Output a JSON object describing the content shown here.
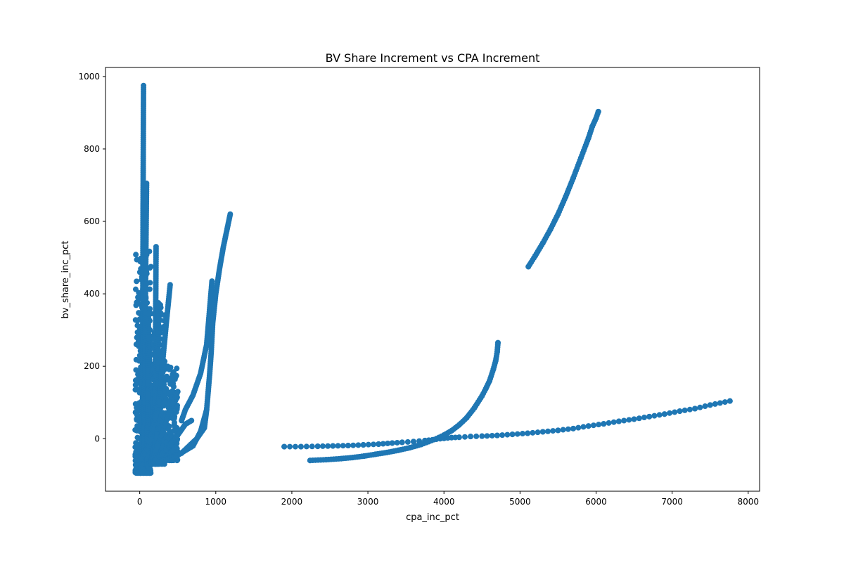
{
  "chart_data": {
    "type": "scatter",
    "title": "BV Share Increment vs CPA Increment",
    "xlabel": "cpa_inc_pct",
    "ylabel": "bv_share_inc_pct",
    "xlim": [
      -450,
      8150
    ],
    "ylim": [
      -145,
      1025
    ],
    "xticks": [
      0,
      1000,
      2000,
      3000,
      4000,
      5000,
      6000,
      7000,
      8000
    ],
    "yticks": [
      0,
      200,
      400,
      600,
      800,
      1000
    ],
    "grid": false,
    "legend": "none",
    "marker_color": "#1f77b4",
    "series": [
      {
        "clusters": [
          {
            "x_range": [
              -60,
              150
            ],
            "y_range": [
              -95,
              520
            ]
          },
          {
            "x_range": [
              0,
              330
            ],
            "y_range": [
              -70,
              380
            ]
          },
          {
            "x_range": [
              100,
              500
            ],
            "y_range": [
              -60,
              200
            ]
          }
        ],
        "strands": [
          {
            "x": [
              35,
              40,
              45,
              50
            ],
            "y": [
              -60,
              300,
              700,
              975
            ]
          },
          {
            "x": [
              60,
              70,
              80,
              90
            ],
            "y": [
              -50,
              250,
              500,
              705
            ]
          },
          {
            "x": [
              200,
              205,
              210,
              215
            ],
            "y": [
              -60,
              150,
              350,
              530
            ]
          },
          {
            "x": [
              230,
              235,
              240,
              245
            ],
            "y": [
              -60,
              100,
              250,
              375
            ]
          },
          {
            "x": [
              100,
              105,
              110,
              115
            ],
            "y": [
              -60,
              80,
              220,
              345
            ]
          },
          {
            "x": [
              0,
              120,
              250,
              350,
              400
            ],
            "y": [
              -60,
              -20,
              100,
              320,
              425
            ]
          },
          {
            "x": [
              150,
              200,
              300,
              400,
              500
            ],
            "y": [
              -60,
              -40,
              20,
              80,
              130
            ]
          },
          {
            "x": [
              100,
              200,
              350,
              500,
              600,
              680
            ],
            "y": [
              -70,
              -60,
              -30,
              10,
              40,
              50
            ]
          },
          {
            "x": [
              550,
              600,
              700,
              800,
              880,
              950
            ],
            "y": [
              50,
              80,
              120,
              180,
              260,
              435
            ]
          },
          {
            "x": [
              300,
              500,
              700,
              800,
              880,
              900,
              920,
              940,
              960,
              1000,
              1050,
              1100,
              1150,
              1190
            ],
            "y": [
              -60,
              -45,
              -20,
              20,
              80,
              130,
              180,
              240,
              320,
              400,
              470,
              530,
              580,
              620
            ]
          },
          {
            "x": [
              250,
              400,
              550,
              650,
              750,
              850,
              880
            ],
            "y": [
              -65,
              -55,
              -40,
              -20,
              0,
              30,
              80
            ]
          }
        ]
      },
      {
        "x": [
          1900,
          2120,
          2340,
          2540,
          2740,
          2940,
          3140,
          3320,
          3450,
          3600,
          3750,
          3850,
          3950,
          4000,
          4100,
          4200,
          4350,
          4500,
          4700,
          4900,
          5100,
          5300,
          5500,
          5700,
          5900,
          6100,
          6300,
          6500,
          6700,
          6900,
          7100,
          7300,
          7500,
          7760
        ],
        "y": [
          -22,
          -22,
          -21,
          -20,
          -19,
          -17,
          -15,
          -12,
          -10,
          -8,
          -5,
          -3,
          0,
          1,
          3,
          4,
          6,
          7,
          9,
          12,
          15,
          19,
          23,
          28,
          35,
          41,
          48,
          54,
          61,
          68,
          76,
          83,
          93,
          104
        ]
      },
      {
        "x": [
          2240,
          2450,
          2650,
          2800,
          2950,
          3100,
          3250,
          3400,
          3550,
          3700,
          3800,
          3900,
          4000,
          4100,
          4200,
          4300,
          4400,
          4500,
          4550,
          4600,
          4650,
          4680,
          4700,
          4710
        ],
        "y": [
          -60,
          -58,
          -55,
          -52,
          -48,
          -43,
          -38,
          -32,
          -25,
          -16,
          -8,
          0,
          10,
          22,
          38,
          58,
          85,
          118,
          138,
          160,
          192,
          215,
          240,
          265
        ]
      },
      {
        "x": [
          5110,
          5200,
          5300,
          5400,
          5500,
          5600,
          5700,
          5800,
          5900,
          5950,
          6000,
          6030
        ],
        "y": [
          475,
          505,
          540,
          578,
          620,
          668,
          720,
          775,
          830,
          862,
          885,
          903
        ]
      }
    ]
  }
}
